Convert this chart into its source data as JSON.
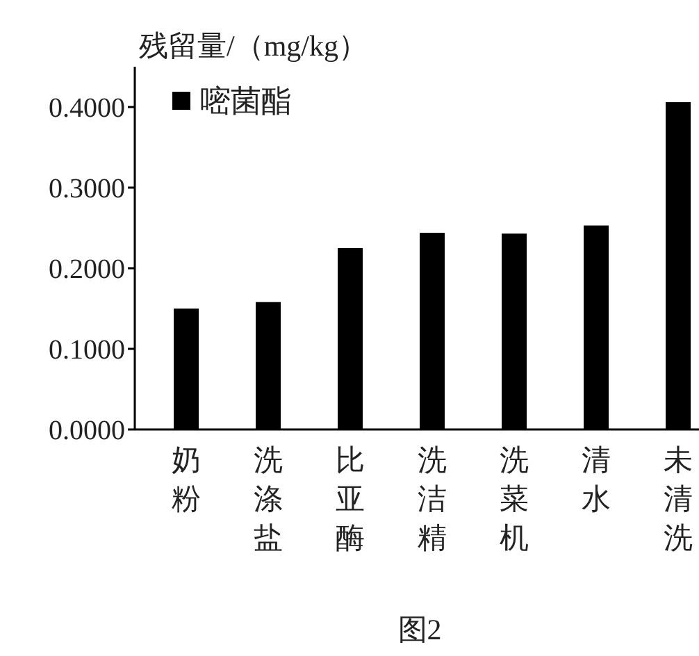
{
  "chart_data": {
    "type": "bar",
    "ylabel": "残留量/（mg/kg）",
    "categories": [
      "奶粉",
      "洗涤盐",
      "比亚酶",
      "洗洁精",
      "洗菜机",
      "清水",
      "未清洗"
    ],
    "series": [
      {
        "name": "嘧菌酯",
        "color": "#000000",
        "values": [
          0.15,
          0.158,
          0.225,
          0.244,
          0.243,
          0.253,
          0.406
        ]
      }
    ],
    "ylim": [
      0,
      0.45
    ],
    "yticks": [
      {
        "value": 0,
        "label": "0.0000"
      },
      {
        "value": 0.1,
        "label": "0.1000"
      },
      {
        "value": 0.2,
        "label": "0.2000"
      },
      {
        "value": 0.3,
        "label": "0.3000"
      },
      {
        "value": 0.4,
        "label": "0.4000"
      }
    ],
    "grid": false,
    "legend": "top left",
    "annotations": [
      "图2"
    ]
  }
}
